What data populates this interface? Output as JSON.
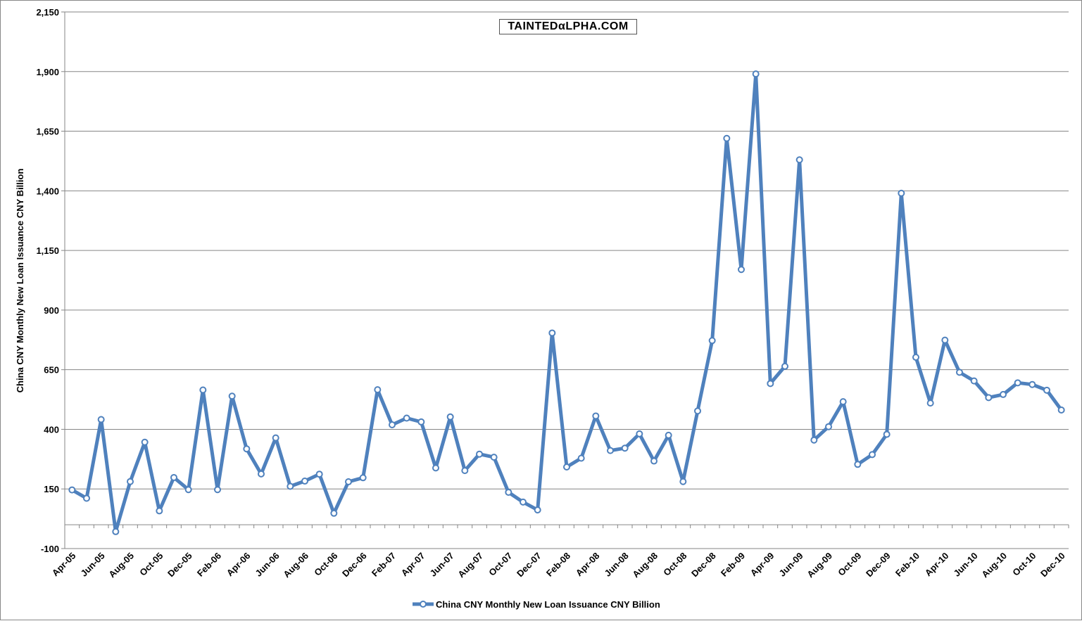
{
  "watermark": "TAINTEDαLPHA.COM",
  "colors": {
    "series": "#4F81BD",
    "grid": "#868686",
    "axis": "#868686"
  },
  "chart_data": {
    "type": "line",
    "ylabel": "China CNY Monthly New Loan Issuance CNY Billion",
    "ylim": [
      -100,
      2150
    ],
    "yticks": [
      -100,
      150,
      400,
      650,
      900,
      1150,
      1400,
      1650,
      1900,
      2150
    ],
    "ytick_labels": [
      "-100",
      "150",
      "400",
      "650",
      "900",
      "1,150",
      "1,400",
      "1,650",
      "1,900",
      "2,150"
    ],
    "grid": true,
    "legend": "bottom",
    "x_tick_every": 2,
    "x": [
      "Apr-05",
      "May-05",
      "Jun-05",
      "Jul-05",
      "Aug-05",
      "Sep-05",
      "Oct-05",
      "Nov-05",
      "Dec-05",
      "Jan-06",
      "Feb-06",
      "Mar-06",
      "Apr-06",
      "May-06",
      "Jun-06",
      "Jul-06",
      "Aug-06",
      "Sep-06",
      "Oct-06",
      "Nov-06",
      "Dec-06",
      "Jan-07",
      "Feb-07",
      "Mar-07",
      "Apr-07",
      "May-07",
      "Jun-07",
      "Jul-07",
      "Aug-07",
      "Sep-07",
      "Oct-07",
      "Nov-07",
      "Dec-07",
      "Jan-08",
      "Feb-08",
      "Mar-08",
      "Apr-08",
      "May-08",
      "Jun-08",
      "Jul-08",
      "Aug-08",
      "Sep-08",
      "Oct-08",
      "Nov-08",
      "Dec-08",
      "Jan-09",
      "Feb-09",
      "Mar-09",
      "Apr-09",
      "May-09",
      "Jun-09",
      "Jul-09",
      "Aug-09",
      "Sep-09",
      "Oct-09",
      "Nov-09",
      "Dec-09",
      "Jan-10",
      "Feb-10",
      "Mar-10",
      "Apr-10",
      "May-10",
      "Jun-10",
      "Jul-10",
      "Aug-10",
      "Sep-10",
      "Oct-10",
      "Nov-10",
      "Dec-10"
    ],
    "series": [
      {
        "name": "China CNY Monthly New Loan Issuance CNY Billion",
        "values": [
          146,
          111,
          441,
          -29,
          181,
          346,
          58,
          198,
          147,
          565,
          147,
          539,
          318,
          213,
          364,
          161,
          183,
          212,
          48,
          180,
          197,
          566,
          419,
          447,
          431,
          238,
          452,
          227,
          296,
          283,
          136,
          95,
          62,
          804,
          242,
          279,
          456,
          311,
          321,
          381,
          267,
          375,
          181,
          477,
          772,
          1620,
          1070,
          1890,
          592,
          664,
          1530,
          355,
          411,
          516,
          253,
          294,
          379,
          1390,
          702,
          510,
          774,
          639,
          603,
          533,
          546,
          595,
          588,
          564,
          481
        ]
      }
    ]
  }
}
